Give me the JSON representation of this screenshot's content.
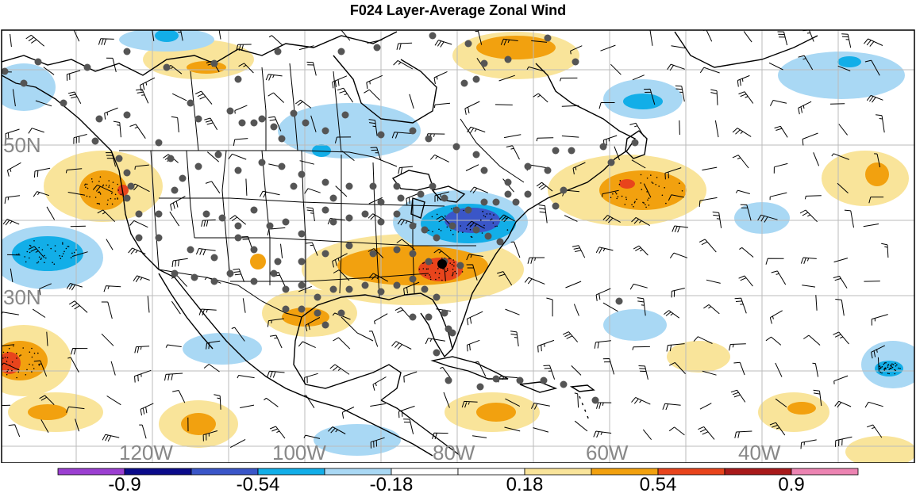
{
  "title": "F024 Layer-Average Zonal Wind",
  "lat_labels": [
    "50N",
    "30N"
  ],
  "lon_labels": [
    "120W",
    "100W",
    "80W",
    "60W",
    "40W"
  ],
  "colorbar": {
    "colors": [
      "#9b3fd1",
      "#0b0b8a",
      "#3a56c8",
      "#12aee8",
      "#a9d8f4",
      "#ffffff",
      "#ffffff",
      "#f9e49a",
      "#f2a10f",
      "#e8441c",
      "#a8191a",
      "#ec84b2"
    ],
    "labels": [
      "-0.9",
      "-0.54",
      "-0.18",
      "0.18",
      "0.54",
      "0.9"
    ]
  },
  "palette": {
    "light_blue": "#a9d8f4",
    "blue": "#12aee8",
    "mid_blue": "#3a56c8",
    "light_yellow": "#f9e49a",
    "orange": "#f2a10f",
    "red_orange": "#e8441c",
    "station_dot": "#555555",
    "grid": "#bbbbbb"
  }
}
